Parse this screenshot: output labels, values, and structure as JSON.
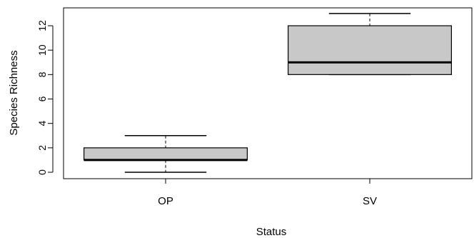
{
  "chart_data": {
    "type": "boxplot",
    "categories": [
      "OP",
      "SV"
    ],
    "boxes": [
      {
        "category": "OP",
        "min": 0,
        "q1": 1,
        "median": 1,
        "q3": 2,
        "max": 3
      },
      {
        "category": "SV",
        "min": 8,
        "q1": 8,
        "median": 9,
        "q3": 12,
        "max": 13
      }
    ],
    "xlabel": "Status",
    "ylabel": "Species Richness",
    "yticks": [
      0,
      2,
      4,
      6,
      8,
      10,
      12
    ],
    "ylim": [
      -0.5,
      13.5
    ],
    "grid": false,
    "box_fill": "#c8c8c8",
    "line_color": "#000000"
  }
}
